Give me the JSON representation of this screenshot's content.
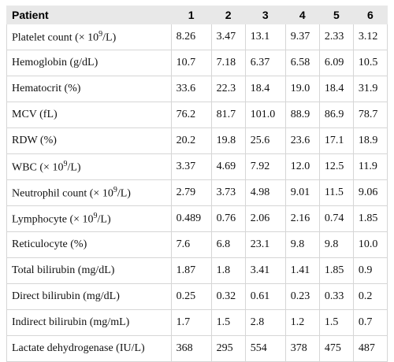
{
  "table": {
    "header": [
      "Patient",
      "1",
      "2",
      "3",
      "4",
      "5",
      "6"
    ],
    "rows": [
      {
        "label": [
          "Platelet count (× 10",
          "9",
          "/L)"
        ],
        "values": [
          "8.26",
          "3.47",
          "13.1",
          "9.37",
          "2.33",
          "3.12"
        ]
      },
      {
        "label": [
          "Hemoglobin (g/dL)"
        ],
        "values": [
          "10.7",
          "7.18",
          "6.37",
          "6.58",
          "6.09",
          "10.5"
        ]
      },
      {
        "label": [
          "Hematocrit (%)"
        ],
        "values": [
          "33.6",
          "22.3",
          "18.4",
          "19.0",
          "18.4",
          "31.9"
        ]
      },
      {
        "label": [
          "MCV (fL)"
        ],
        "values": [
          "76.2",
          "81.7",
          "101.0",
          "88.9",
          "86.9",
          "78.7"
        ]
      },
      {
        "label": [
          "RDW (%)"
        ],
        "values": [
          "20.2",
          "19.8",
          "25.6",
          "23.6",
          "17.1",
          "18.9"
        ]
      },
      {
        "label": [
          "WBC (× 10",
          "9",
          "/L)"
        ],
        "values": [
          "3.37",
          "4.69",
          "7.92",
          "12.0",
          "12.5",
          "11.9"
        ]
      },
      {
        "label": [
          "Neutrophil count (× 10",
          "9",
          "/L)"
        ],
        "values": [
          "2.79",
          "3.73",
          "4.98",
          "9.01",
          "11.5",
          "9.06"
        ]
      },
      {
        "label": [
          "Lymphocyte (× 10",
          "9",
          "/L)"
        ],
        "values": [
          "0.489",
          "0.76",
          "2.06",
          "2.16",
          "0.74",
          "1.85"
        ]
      },
      {
        "label": [
          "Reticulocyte (%)"
        ],
        "values": [
          "7.6",
          "6.8",
          "23.1",
          "9.8",
          "9.8",
          "10.0"
        ]
      },
      {
        "label": [
          "Total bilirubin (mg/dL)"
        ],
        "values": [
          "1.87",
          "1.8",
          "3.41",
          "1.41",
          "1.85",
          "0.9"
        ]
      },
      {
        "label": [
          "Direct bilirubin (mg/dL)"
        ],
        "values": [
          "0.25",
          "0.32",
          "0.61",
          "0.23",
          "0.33",
          "0.2"
        ]
      },
      {
        "label": [
          "Indirect bilirubin (mg/mL)"
        ],
        "values": [
          "1.7",
          "1.5",
          "2.8",
          "1.2",
          "1.5",
          "0.7"
        ]
      },
      {
        "label": [
          "Lactate dehydrogenase (IU/L)"
        ],
        "values": [
          "368",
          "295",
          "554",
          "378",
          "475",
          "487"
        ]
      }
    ]
  }
}
